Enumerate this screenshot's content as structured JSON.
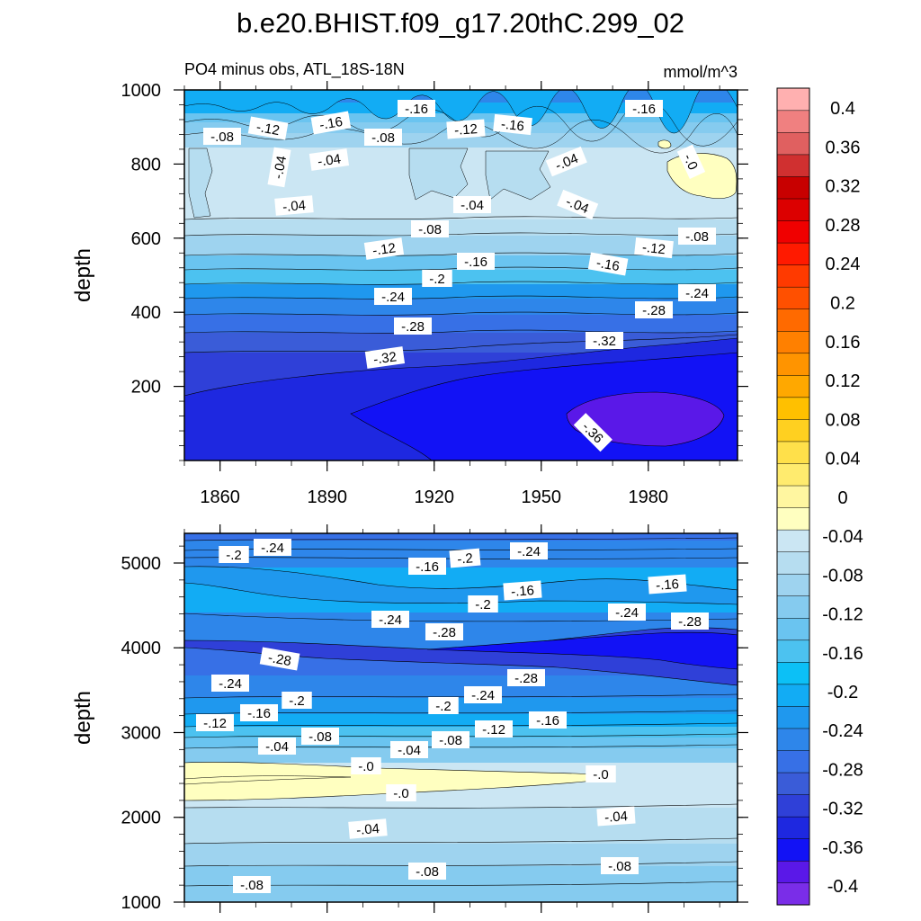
{
  "title": "b.e20.BHIST.f09_g17.20thC.299_02",
  "chart_data": {
    "type": "heatmap",
    "time_range": [
      1850,
      2005
    ],
    "xticks": [
      1860,
      1890,
      1920,
      1950,
      1980
    ],
    "colorbar": {
      "levels": [
        -0.4,
        -0.36,
        -0.32,
        -0.28,
        -0.24,
        -0.2,
        -0.16,
        -0.12,
        -0.08,
        -0.04,
        0,
        0.04,
        0.08,
        0.12,
        0.16,
        0.2,
        0.24,
        0.28,
        0.32,
        0.36,
        0.4
      ],
      "labels": [
        "-0.4",
        "-0.36",
        "-0.32",
        "-0.28",
        "-0.24",
        "-0.2",
        "-0.16",
        "-0.12",
        "-0.08",
        "-0.04",
        "0",
        "0.04",
        "0.08",
        "0.12",
        "0.16",
        "0.2",
        "0.24",
        "0.28",
        "0.32",
        "0.36",
        "0.4"
      ],
      "colors": [
        "#7a2de8",
        "#5a18e8",
        "#1212f5",
        "#1e28e0",
        "#2f40d8",
        "#3a5cd8",
        "#3770e6",
        "#2e86ea",
        "#1f98ee",
        "#12acf4",
        "#0cc0f6",
        "#4cc2f0",
        "#6ac4f0",
        "#85cbef",
        "#9ed3ef",
        "#b6ddf0",
        "#cbe6f3",
        "#ffffc0",
        "#fff6a0",
        "#ffeb6e",
        "#ffe04a",
        "#ffd020",
        "#ffc000",
        "#ffa800",
        "#ff9400",
        "#ff8000",
        "#ff6a00",
        "#ff5000",
        "#ff3a00",
        "#ff1a00",
        "#f00000",
        "#dc0000",
        "#c80000",
        "#d03030",
        "#e06060",
        "#f08080",
        "#ffb0b0"
      ]
    },
    "panels": [
      {
        "name": "upper",
        "subtitle": "PO4 minus obs, ATL_18S-18N",
        "units": "mmol/m^3",
        "ylabel": "depth",
        "ylim": [
          1000,
          0
        ],
        "yticks": [
          200,
          400,
          600,
          800,
          1000
        ],
        "contour_labels": [
          "-.16",
          "-.12",
          "-.16",
          "-.08",
          "-.08",
          "-.12",
          "-.16",
          "-.16",
          "-.04",
          "-.04",
          "-.04",
          "-.0",
          "-.04",
          "-.04",
          "-.04",
          "-.08",
          "-.08",
          "-.12",
          "-.12",
          "-.16",
          "-.16",
          "-.2",
          "-.24",
          "-.24",
          "-.28",
          "-.28",
          "-.32",
          "-.32",
          "-.36"
        ]
      },
      {
        "name": "lower",
        "ylabel": "depth",
        "ylim": [
          5350,
          1000
        ],
        "yticks": [
          1000,
          2000,
          3000,
          4000,
          5000
        ],
        "contour_labels": [
          "-.2",
          "-.24",
          "-.24",
          "-.2",
          "-.16",
          "-.16",
          "-.16",
          "-.2",
          "-.24",
          "-.24",
          "-.28",
          "-.28",
          "-.28",
          "-.24",
          "-.16",
          "-.2",
          "-.28",
          "-.24",
          "-.12",
          "-.2",
          "-.12",
          "-.16",
          "-.08",
          "-.04",
          "-.08",
          "-.04",
          "-.0",
          "-.0",
          "-.0",
          "-.04",
          "-.04",
          "-.08",
          "-.08",
          "-.08"
        ]
      }
    ]
  }
}
